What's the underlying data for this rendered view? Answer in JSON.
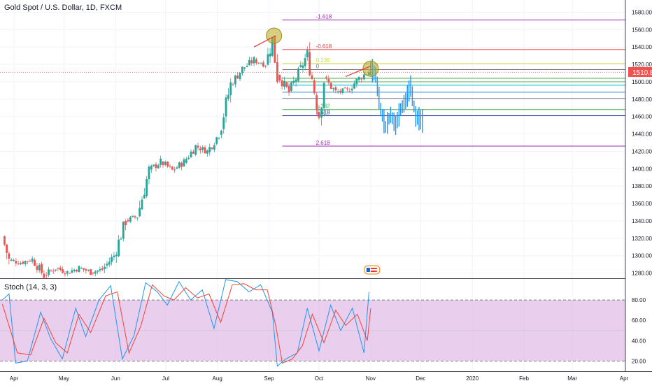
{
  "header": {
    "symbol_title": "Gold Spot / U.S. Dollar, 1D, FXCM"
  },
  "price_tag": {
    "value": "1510.80",
    "color": "#ef5350"
  },
  "indicator": {
    "title": "Stoch (14, 3, 3)",
    "k_color": "#2196f3",
    "d_color": "#f44336",
    "band_color": "#e1bee7"
  },
  "colors": {
    "up": "#26a69a",
    "down": "#ef5350",
    "projection": "#2196f3",
    "highlight_circle": "#b8a81f"
  },
  "icon": "calendar-event-icon",
  "chart_data": [
    {
      "type": "candlestick",
      "title": "Gold Spot / U.S. Dollar, 1D, FXCM",
      "y_axis_ticks": [
        1280,
        1300,
        1320,
        1340,
        1360,
        1380,
        1400,
        1420,
        1440,
        1460,
        1480,
        1500,
        1520,
        1540,
        1560,
        1580
      ],
      "ylim": [
        1270,
        1590
      ],
      "x_axis_labels": [
        "Apr",
        "May",
        "Jun",
        "Jul",
        "Aug",
        "Sep",
        "Oct",
        "Nov",
        "Dec",
        "2020",
        "Feb",
        "Mar",
        "Apr"
      ],
      "last_price": 1510.8,
      "path": [
        [
          "2019-03-25",
          1322
        ],
        [
          "2019-03-29",
          1295
        ],
        [
          "2019-04-05",
          1292
        ],
        [
          "2019-04-12",
          1296
        ],
        [
          "2019-04-19",
          1277
        ],
        [
          "2019-04-26",
          1286
        ],
        [
          "2019-05-03",
          1281
        ],
        [
          "2019-05-10",
          1286
        ],
        [
          "2019-05-17",
          1281
        ],
        [
          "2019-05-24",
          1284
        ],
        [
          "2019-05-31",
          1300
        ],
        [
          "2019-06-07",
          1340
        ],
        [
          "2019-06-14",
          1345
        ],
        [
          "2019-06-21",
          1398
        ],
        [
          "2019-06-28",
          1408
        ],
        [
          "2019-07-05",
          1398
        ],
        [
          "2019-07-12",
          1408
        ],
        [
          "2019-07-19",
          1426
        ],
        [
          "2019-07-26",
          1420
        ],
        [
          "2019-08-02",
          1440
        ],
        [
          "2019-08-09",
          1497
        ],
        [
          "2019-08-16",
          1515
        ],
        [
          "2019-08-23",
          1525
        ],
        [
          "2019-08-30",
          1520
        ],
        [
          "2019-09-03",
          1548
        ],
        [
          "2019-09-06",
          1508
        ],
        [
          "2019-09-13",
          1488
        ],
        [
          "2019-09-20",
          1515
        ],
        [
          "2019-09-24",
          1532
        ],
        [
          "2019-10-01",
          1462
        ],
        [
          "2019-10-04",
          1504
        ],
        [
          "2019-10-11",
          1488
        ],
        [
          "2019-10-18",
          1490
        ],
        [
          "2019-10-25",
          1504
        ],
        [
          "2019-10-31",
          1512
        ]
      ],
      "projection": [
        [
          "2019-11-01",
          1515
        ],
        [
          "2019-11-04",
          1508
        ],
        [
          "2019-11-07",
          1468
        ],
        [
          "2019-11-10",
          1448
        ],
        [
          "2019-11-13",
          1462
        ],
        [
          "2019-11-16",
          1450
        ],
        [
          "2019-11-19",
          1468
        ],
        [
          "2019-11-22",
          1478
        ],
        [
          "2019-11-25",
          1495
        ],
        [
          "2019-11-28",
          1460
        ],
        [
          "2019-12-02",
          1455
        ],
        [
          "2019-12-03",
          1420
        ]
      ],
      "fibonacci_levels": [
        {
          "label": "-1.618",
          "price": 1571,
          "color": "#9c27b0"
        },
        {
          "label": "-0.618",
          "price": 1537,
          "color": "#e53935"
        },
        {
          "label": "0.236",
          "price": 1521,
          "color": "#cddc39"
        },
        {
          "label": "0",
          "price": 1514,
          "color": "#787b86"
        },
        {
          "label": "",
          "price": 1504,
          "color": "#4caf50"
        },
        {
          "label": "",
          "price": 1500,
          "color": "#4caf50"
        },
        {
          "label": "",
          "price": 1496,
          "color": "#00bcd4"
        },
        {
          "label": "",
          "price": 1488,
          "color": "#3f8fd2"
        },
        {
          "label": "",
          "price": 1481,
          "color": "#787b86"
        },
        {
          "label": "1.382",
          "price": 1468,
          "color": "#4caf50"
        },
        {
          "label": "1.618",
          "price": 1461,
          "color": "#1e3a8a"
        },
        {
          "label": "2.618",
          "price": 1426,
          "color": "#9c27b0"
        }
      ]
    },
    {
      "type": "line",
      "title": "Stoch (14, 3, 3)",
      "y_axis_ticks": [
        20,
        40,
        60,
        80
      ],
      "ylim": [
        10,
        100
      ],
      "overbought": 80,
      "oversold": 20,
      "series": [
        {
          "name": "",
          "color": "#2196f3",
          "points": [
            [
              "2019-03-25",
              80
            ],
            [
              "2019-03-29",
              86
            ],
            [
              "2019-04-02",
              18
            ],
            [
              "2019-04-09",
              20
            ],
            [
              "2019-04-17",
              68
            ],
            [
              "2019-04-23",
              42
            ],
            [
              "2019-04-30",
              22
            ],
            [
              "2019-05-08",
              72
            ],
            [
              "2019-05-14",
              44
            ],
            [
              "2019-05-22",
              80
            ],
            [
              "2019-05-29",
              94
            ],
            [
              "2019-06-05",
              22
            ],
            [
              "2019-06-12",
              45
            ],
            [
              "2019-06-19",
              97
            ],
            [
              "2019-06-26",
              88
            ],
            [
              "2019-07-02",
              75
            ],
            [
              "2019-07-09",
              98
            ],
            [
              "2019-07-16",
              80
            ],
            [
              "2019-07-23",
              90
            ],
            [
              "2019-07-30",
              52
            ],
            [
              "2019-08-06",
              100
            ],
            [
              "2019-08-13",
              98
            ],
            [
              "2019-08-20",
              88
            ],
            [
              "2019-08-27",
              95
            ],
            [
              "2019-09-03",
              68
            ],
            [
              "2019-09-06",
              15
            ],
            [
              "2019-09-11",
              22
            ],
            [
              "2019-09-18",
              28
            ],
            [
              "2019-09-24",
              72
            ],
            [
              "2019-10-01",
              30
            ],
            [
              "2019-10-08",
              75
            ],
            [
              "2019-10-14",
              50
            ],
            [
              "2019-10-21",
              72
            ],
            [
              "2019-10-28",
              28
            ],
            [
              "2019-10-31",
              88
            ]
          ]
        },
        {
          "name": "",
          "color": "#f44336",
          "points": [
            [
              "2019-03-25",
              76
            ],
            [
              "2019-04-03",
              28
            ],
            [
              "2019-04-11",
              26
            ],
            [
              "2019-04-19",
              62
            ],
            [
              "2019-04-26",
              38
            ],
            [
              "2019-05-03",
              28
            ],
            [
              "2019-05-10",
              66
            ],
            [
              "2019-05-17",
              48
            ],
            [
              "2019-05-26",
              84
            ],
            [
              "2019-06-02",
              88
            ],
            [
              "2019-06-09",
              28
            ],
            [
              "2019-06-16",
              54
            ],
            [
              "2019-06-23",
              95
            ],
            [
              "2019-06-30",
              84
            ],
            [
              "2019-07-06",
              80
            ],
            [
              "2019-07-13",
              92
            ],
            [
              "2019-07-20",
              82
            ],
            [
              "2019-07-27",
              86
            ],
            [
              "2019-08-03",
              58
            ],
            [
              "2019-08-10",
              95
            ],
            [
              "2019-08-17",
              96
            ],
            [
              "2019-08-24",
              90
            ],
            [
              "2019-08-31",
              90
            ],
            [
              "2019-09-05",
              55
            ],
            [
              "2019-09-09",
              18
            ],
            [
              "2019-09-15",
              22
            ],
            [
              "2019-09-21",
              35
            ],
            [
              "2019-09-27",
              66
            ],
            [
              "2019-10-04",
              38
            ],
            [
              "2019-10-11",
              70
            ],
            [
              "2019-10-17",
              55
            ],
            [
              "2019-10-24",
              66
            ],
            [
              "2019-10-30",
              40
            ],
            [
              "2019-11-01",
              72
            ]
          ]
        }
      ]
    }
  ]
}
